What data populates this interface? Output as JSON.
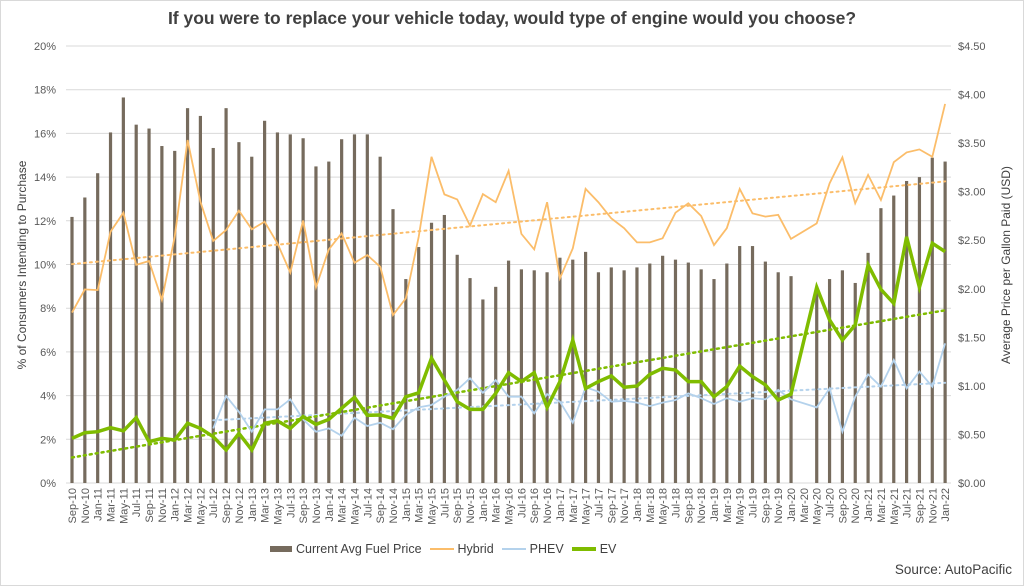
{
  "chart_data": {
    "type": "bar+line",
    "title": "If you were to replace your vehicle today, would type of engine would you choose?",
    "ylabel_left": "% of Consumers Intending to Purchase",
    "ylabel_right": "Average Price per Gallon Paid (USD)",
    "ylim_left": [
      0,
      20
    ],
    "ylim_right": [
      0,
      4.5
    ],
    "yticks_left": [
      "0%",
      "2%",
      "4%",
      "6%",
      "8%",
      "10%",
      "12%",
      "14%",
      "16%",
      "18%",
      "20%"
    ],
    "yticks_right": [
      "$0.00",
      "$0.50",
      "$1.00",
      "$1.50",
      "$2.00",
      "$2.50",
      "$3.00",
      "$3.50",
      "$4.00",
      "$4.50"
    ],
    "grid": true,
    "legend_position": "bottom",
    "categories": [
      "Sep-10",
      "Nov-10",
      "Jan-11",
      "Mar-11",
      "May-11",
      "Jul-11",
      "Sep-11",
      "Nov-11",
      "Jan-12",
      "Mar-12",
      "May-12",
      "Jul-12",
      "Sep-12",
      "Nov-12",
      "Jan-13",
      "Mar-13",
      "May-13",
      "Jul-13",
      "Sep-13",
      "Nov-13",
      "Jan-14",
      "Mar-14",
      "May-14",
      "Jul-14",
      "Sep-14",
      "Nov-14",
      "Jan-15",
      "Mar-15",
      "May-15",
      "Jul-15",
      "Sep-15",
      "Nov-15",
      "Jan-16",
      "Mar-16",
      "May-16",
      "Jul-16",
      "Sep-16",
      "Nov-16",
      "Jan-17",
      "Mar-17",
      "May-17",
      "Jul-17",
      "Sep-17",
      "Nov-17",
      "Jan-18",
      "Mar-18",
      "May-18",
      "Jul-18",
      "Sep-18",
      "Nov-18",
      "Jan-19",
      "Mar-19",
      "May-19",
      "Jul-19",
      "Sep-19",
      "Nov-19",
      "Jan-20",
      "Mar-20",
      "May-20",
      "Jul-20",
      "Sep-20",
      "Nov-20",
      "Jan-21",
      "Mar-21",
      "May-21",
      "Jul-21",
      "Sep-21",
      "Nov-21",
      "Jan-22"
    ],
    "series": [
      {
        "name": "Current Avg Fuel Price",
        "type": "bar",
        "axis": "right",
        "color": "#766b5d",
        "values": [
          2.74,
          2.94,
          3.19,
          3.61,
          3.97,
          3.69,
          3.65,
          3.47,
          3.42,
          3.86,
          3.78,
          3.45,
          3.86,
          3.51,
          3.36,
          3.73,
          3.61,
          3.59,
          3.55,
          3.26,
          3.31,
          3.54,
          3.59,
          3.59,
          3.36,
          2.82,
          2.1,
          2.43,
          2.68,
          2.76,
          2.35,
          2.11,
          1.89,
          2.02,
          2.29,
          2.2,
          2.19,
          2.17,
          2.32,
          2.3,
          2.38,
          2.17,
          2.22,
          2.19,
          2.22,
          2.26,
          2.34,
          2.3,
          2.27,
          2.2,
          2.1,
          2.26,
          2.44,
          2.44,
          2.28,
          2.17,
          2.13,
          null,
          2.02,
          2.1,
          2.19,
          2.06,
          2.37,
          2.83,
          2.96,
          3.11,
          3.15,
          3.35,
          3.31
        ]
      },
      {
        "name": "Hybrid",
        "type": "line",
        "axis": "left",
        "color": "#fbbd6a",
        "trend": true,
        "values": [
          7.8,
          8.86,
          8.83,
          11.5,
          12.37,
          9.98,
          10.16,
          8.38,
          11.27,
          15.7,
          12.88,
          11.08,
          11.58,
          12.46,
          11.61,
          11.96,
          10.97,
          9.63,
          12.01,
          8.96,
          10.69,
          11.43,
          10.08,
          10.43,
          9.9,
          7.69,
          8.45,
          11.27,
          14.93,
          13.21,
          12.98,
          11.78,
          13.22,
          12.85,
          14.29,
          11.4,
          10.69,
          12.85,
          9.37,
          10.74,
          13.46,
          12.85,
          12.11,
          11.66,
          11.01,
          11.01,
          11.2,
          12.37,
          12.8,
          12.22,
          10.89,
          11.66,
          13.46,
          12.34,
          12.19,
          12.27,
          11.17,
          null,
          11.88,
          13.71,
          14.9,
          12.8,
          14.1,
          12.95,
          14.68,
          15.13,
          15.27,
          14.93,
          17.35
        ]
      },
      {
        "name": "PHEV",
        "type": "line",
        "axis": "left",
        "color": "#b4d2ec",
        "trend": true,
        "values": [
          null,
          null,
          null,
          null,
          null,
          null,
          null,
          null,
          null,
          null,
          null,
          2.5,
          3.98,
          3.26,
          2.35,
          3.37,
          3.37,
          3.83,
          2.91,
          2.35,
          2.5,
          2.16,
          2.99,
          2.61,
          2.76,
          2.46,
          3.11,
          3.46,
          3.57,
          3.95,
          4.26,
          4.79,
          4.13,
          4.71,
          3.95,
          3.95,
          3.19,
          4.07,
          3.72,
          2.76,
          4.38,
          4.18,
          3.72,
          3.76,
          3.68,
          3.52,
          3.68,
          3.8,
          4.1,
          3.88,
          3.62,
          3.88,
          3.72,
          3.88,
          3.83,
          4.26,
          3.83,
          null,
          3.46,
          4.33,
          2.35,
          3.95,
          4.97,
          4.41,
          5.63,
          4.33,
          5.1,
          4.41,
          6.39
        ]
      },
      {
        "name": "EV",
        "type": "line",
        "axis": "left",
        "color": "#7fbc00",
        "trend": true,
        "values": [
          2.04,
          2.3,
          2.35,
          2.53,
          2.39,
          2.99,
          1.89,
          2.04,
          1.97,
          2.73,
          2.5,
          2.12,
          1.51,
          2.27,
          1.51,
          2.73,
          2.84,
          2.5,
          3.04,
          2.68,
          2.91,
          3.42,
          3.92,
          3.1,
          3.11,
          2.96,
          3.95,
          4.13,
          5.71,
          4.71,
          3.72,
          3.37,
          3.37,
          4.1,
          5.05,
          4.64,
          5.05,
          3.46,
          4.64,
          6.54,
          4.33,
          4.64,
          4.9,
          4.38,
          4.44,
          4.97,
          5.25,
          5.17,
          4.64,
          4.64,
          3.95,
          4.41,
          5.35,
          4.87,
          4.49,
          3.8,
          4.07,
          null,
          8.96,
          7.46,
          6.54,
          7.23,
          9.98,
          8.86,
          8.22,
          11.27,
          8.96,
          10.97,
          10.59
        ]
      }
    ],
    "source": "Source: AutoPacific"
  }
}
